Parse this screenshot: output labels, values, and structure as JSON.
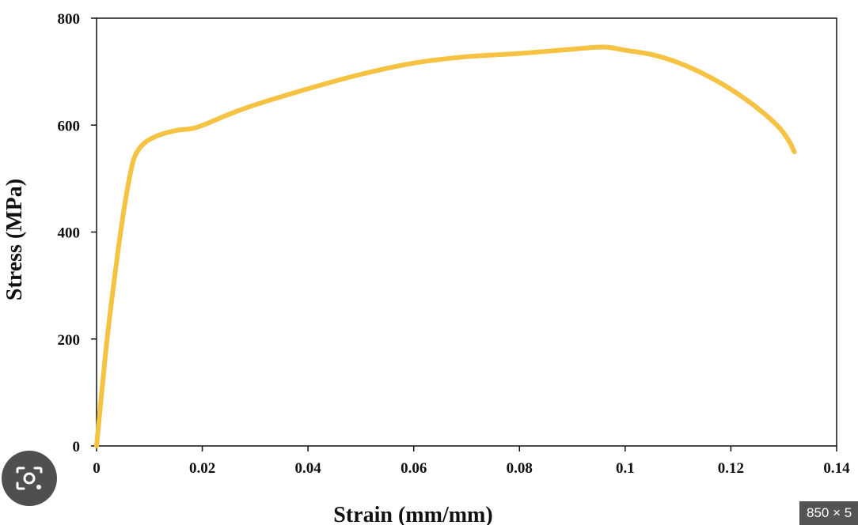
{
  "chart_data": {
    "type": "line",
    "xlabel": "Strain (mm/mm)",
    "ylabel": "Stress (MPa)",
    "xlim": [
      0,
      0.14
    ],
    "ylim": [
      0,
      800
    ],
    "x_ticks": [
      {
        "value": 0,
        "label": "0"
      },
      {
        "value": 0.02,
        "label": "0.02"
      },
      {
        "value": 0.04,
        "label": "0.04"
      },
      {
        "value": 0.06,
        "label": "0.06"
      },
      {
        "value": 0.08,
        "label": "0.08"
      },
      {
        "value": 0.1,
        "label": "0.1"
      },
      {
        "value": 0.12,
        "label": "0.12"
      },
      {
        "value": 0.14,
        "label": "0.14"
      }
    ],
    "y_ticks": [
      {
        "value": 0,
        "label": "0"
      },
      {
        "value": 200,
        "label": "200"
      },
      {
        "value": 400,
        "label": "400"
      },
      {
        "value": 600,
        "label": "600"
      },
      {
        "value": 800,
        "label": "800"
      }
    ],
    "grid": false,
    "series": [
      {
        "color": "#F5C242",
        "x": [
          0,
          0.002,
          0.004,
          0.005,
          0.006,
          0.007,
          0.008,
          0.009,
          0.01,
          0.012,
          0.015,
          0.019,
          0.025,
          0.03,
          0.04,
          0.05,
          0.06,
          0.07,
          0.08,
          0.09,
          0.096,
          0.1,
          0.105,
          0.11,
          0.115,
          0.12,
          0.125,
          0.129,
          0.131,
          0.132
        ],
        "y": [
          0,
          200,
          360,
          430,
          490,
          535,
          555,
          566,
          573,
          582,
          590,
          596,
          620,
          638,
          668,
          695,
          716,
          728,
          734,
          742,
          746,
          740,
          732,
          717,
          695,
          667,
          632,
          597,
          570,
          550
        ]
      }
    ]
  },
  "overlay": {
    "lens_icon": "camera-search-icon",
    "size_badge": "850 × 5"
  }
}
